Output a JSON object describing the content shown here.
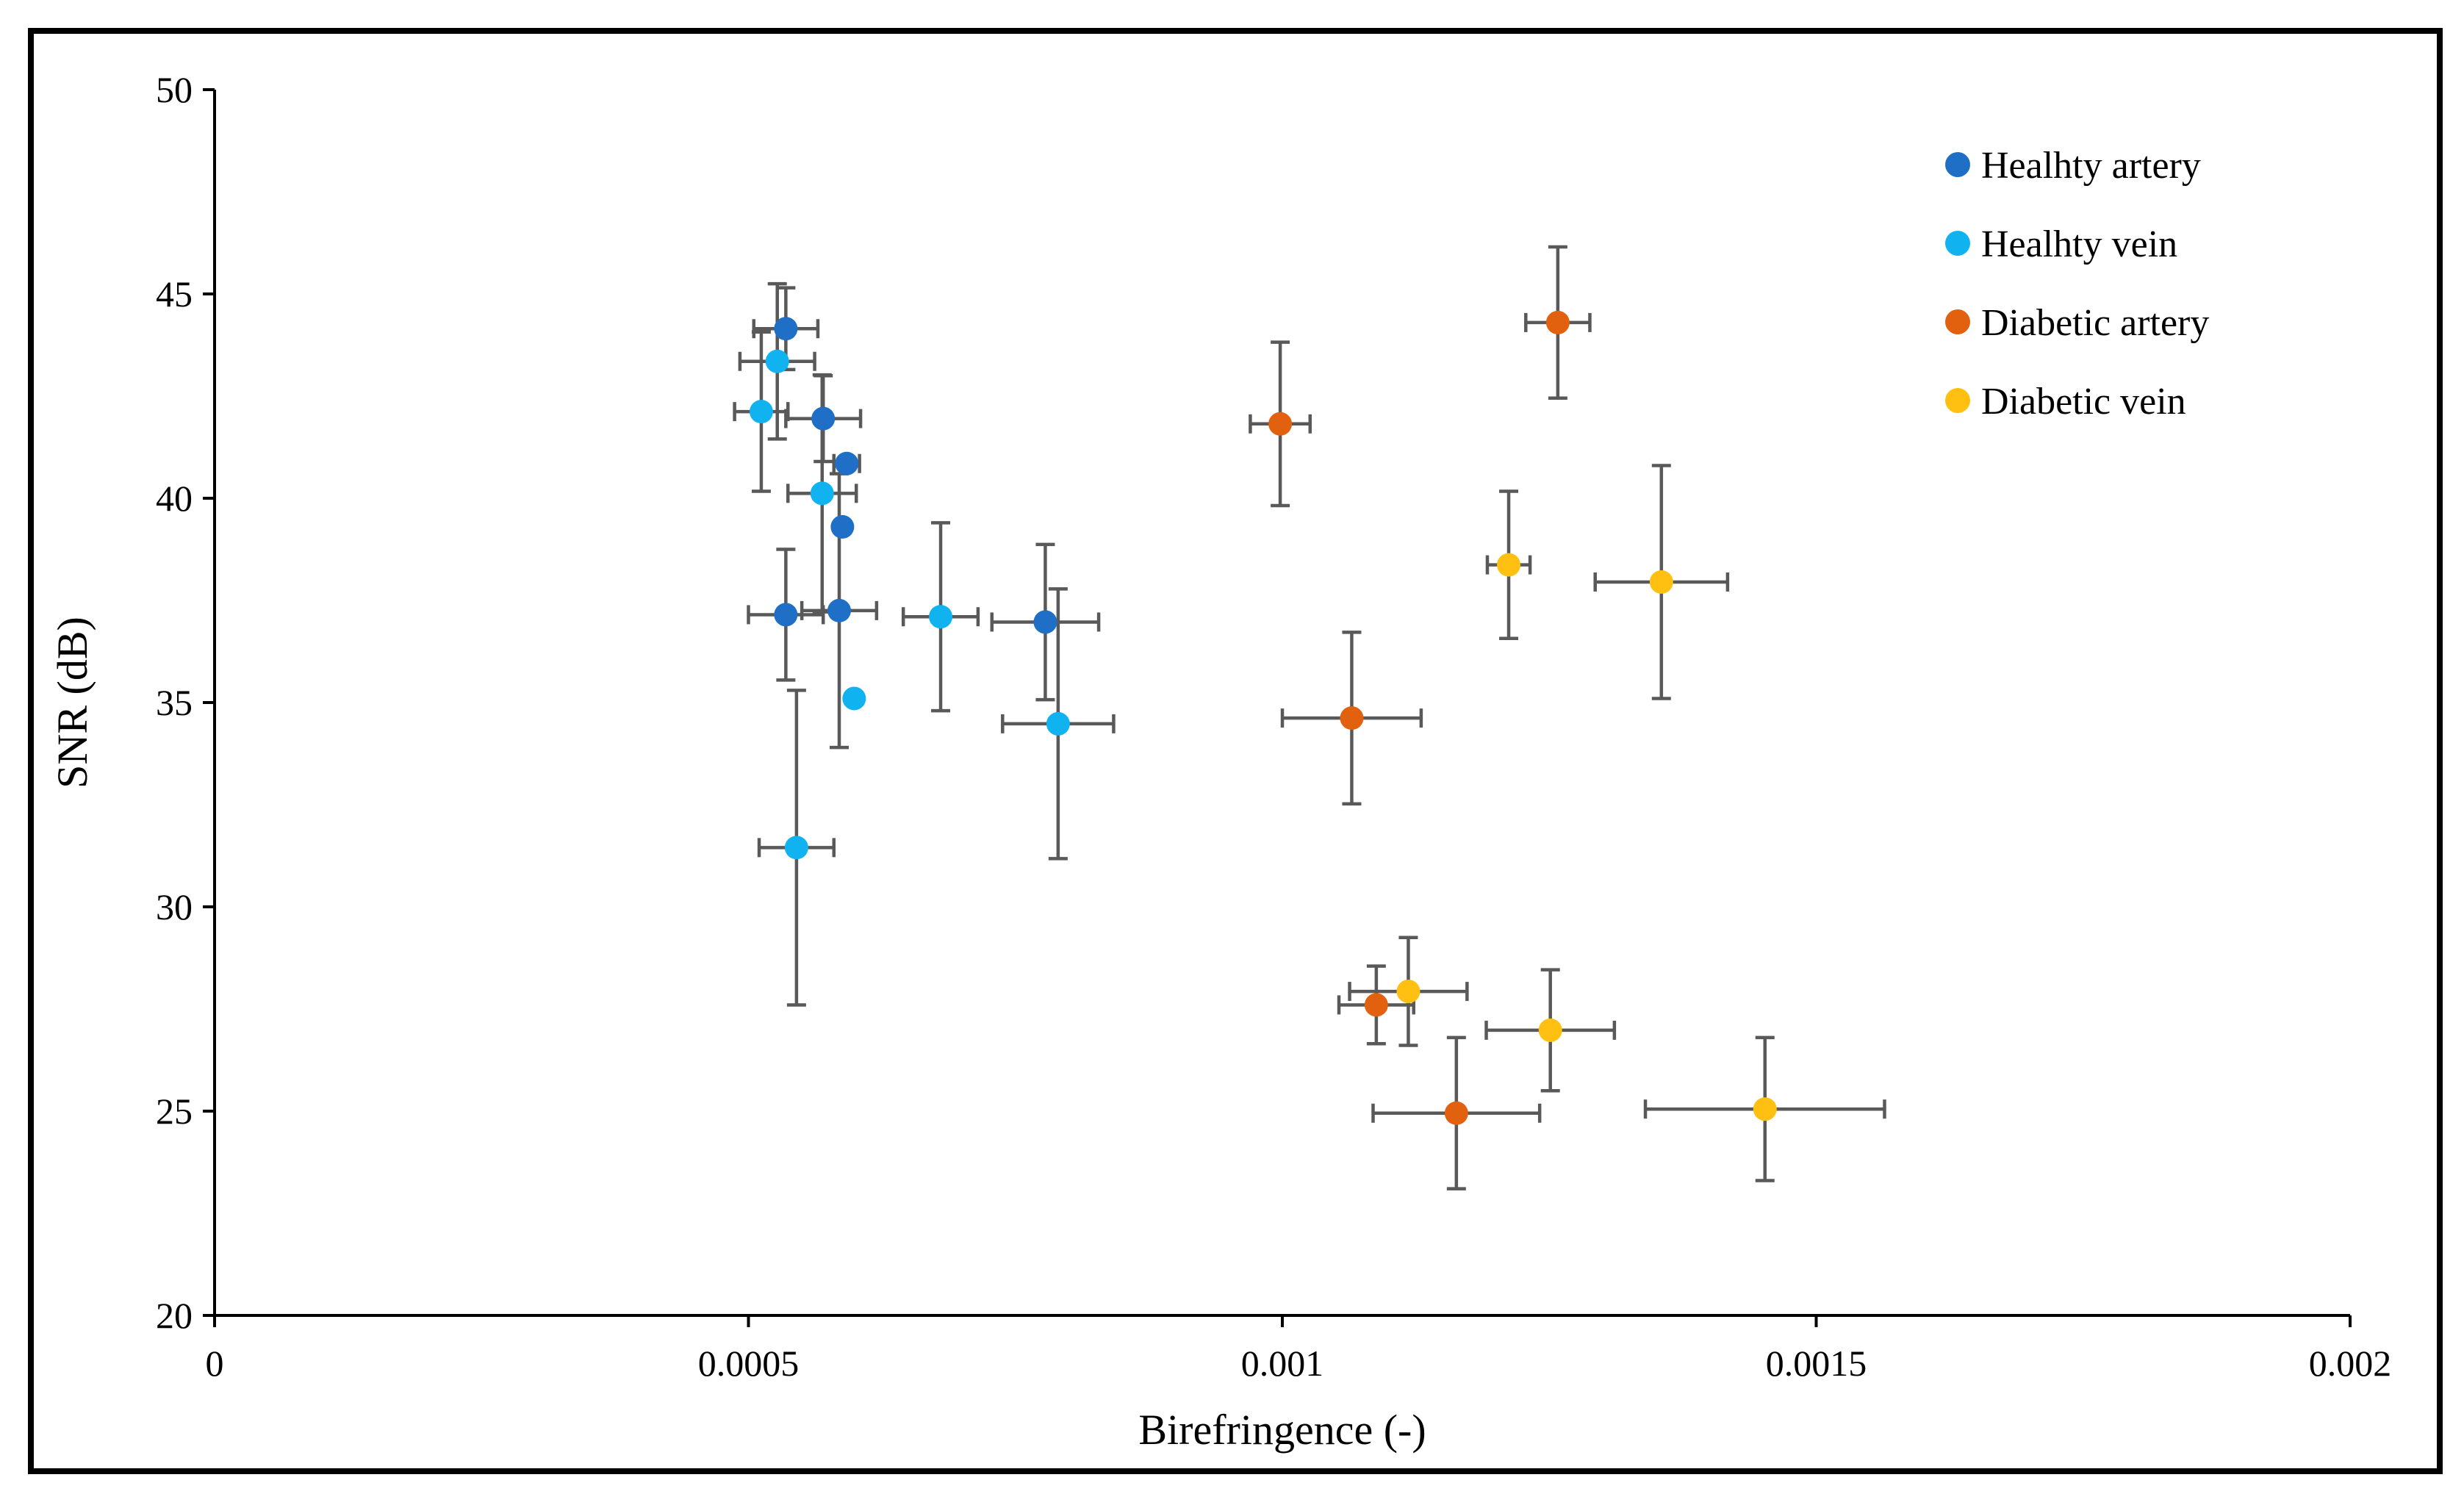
{
  "chart_data": {
    "type": "scatter",
    "title": "",
    "xlabel": "Birefringence (-)",
    "ylabel": "SNR (dB)",
    "xlim": [
      0,
      0.002
    ],
    "ylim": [
      20,
      50
    ],
    "x_ticks": [
      0,
      0.0005,
      0.001,
      0.0015,
      0.002
    ],
    "x_tick_labels": [
      "0",
      "0.0005",
      "0.001",
      "0.0015",
      "0.002"
    ],
    "y_ticks": [
      20,
      25,
      30,
      35,
      40,
      45,
      50
    ],
    "y_tick_labels": [
      "20",
      "25",
      "30",
      "35",
      "40",
      "45",
      "50"
    ],
    "grid": false,
    "legend_position": "top-right",
    "series": [
      {
        "name": "Healhty artery",
        "color": "#1f6fc6",
        "points": [
          {
            "x": 0.000535,
            "y": 44.15,
            "xerr": 3e-05,
            "yerr": 1.0
          },
          {
            "x": 0.00057,
            "y": 41.95,
            "xerr": 3.5e-05,
            "yerr": 1.05
          },
          {
            "x": 0.000592,
            "y": 40.85,
            "xerr": 1.2e-05,
            "yerr": 0
          },
          {
            "x": 0.000588,
            "y": 39.3,
            "xerr": 0,
            "yerr": 0
          },
          {
            "x": 0.000535,
            "y": 37.15,
            "xerr": 3.5e-05,
            "yerr": 1.6
          },
          {
            "x": 0.000585,
            "y": 37.25,
            "xerr": 3.5e-05,
            "yerr": 3.35
          },
          {
            "x": 0.000778,
            "y": 36.97,
            "xerr": 5e-05,
            "yerr": 1.9
          }
        ]
      },
      {
        "name": "Healhty vein",
        "color": "#10b3f0",
        "points": [
          {
            "x": 0.000527,
            "y": 43.35,
            "xerr": 3.5e-05,
            "yerr": 1.9
          },
          {
            "x": 0.000512,
            "y": 42.12,
            "xerr": 2.5e-05,
            "yerr": 1.95
          },
          {
            "x": 0.000569,
            "y": 40.12,
            "xerr": 3.2e-05,
            "yerr": 2.9
          },
          {
            "x": 0.00068,
            "y": 37.1,
            "xerr": 3.5e-05,
            "yerr": 2.3
          },
          {
            "x": 0.000599,
            "y": 35.1,
            "xerr": 0,
            "yerr": 0
          },
          {
            "x": 0.00079,
            "y": 34.48,
            "xerr": 5.2e-05,
            "yerr": 3.3
          },
          {
            "x": 0.000545,
            "y": 31.45,
            "xerr": 3.5e-05,
            "yerr": 3.85
          }
        ]
      },
      {
        "name": "Diabetic artery",
        "color": "#e2610f",
        "points": [
          {
            "x": 0.001258,
            "y": 44.3,
            "xerr": 3e-05,
            "yerr": 1.85
          },
          {
            "x": 0.000998,
            "y": 41.82,
            "xerr": 2.8e-05,
            "yerr": 2.0
          },
          {
            "x": 0.001065,
            "y": 34.62,
            "xerr": 6.5e-05,
            "yerr": 2.1
          },
          {
            "x": 0.001088,
            "y": 27.6,
            "xerr": 3.5e-05,
            "yerr": 0.95
          },
          {
            "x": 0.001163,
            "y": 24.95,
            "xerr": 7.8e-05,
            "yerr": 1.85
          }
        ]
      },
      {
        "name": "Diabetic vein",
        "color": "#ffc012",
        "points": [
          {
            "x": 0.001212,
            "y": 38.37,
            "xerr": 2e-05,
            "yerr": 1.8
          },
          {
            "x": 0.001355,
            "y": 37.95,
            "xerr": 6.2e-05,
            "yerr": 2.85
          },
          {
            "x": 0.001118,
            "y": 27.93,
            "xerr": 5.5e-05,
            "yerr": 1.32
          },
          {
            "x": 0.001251,
            "y": 26.98,
            "xerr": 6e-05,
            "yerr": 1.48
          },
          {
            "x": 0.001452,
            "y": 25.05,
            "xerr": 0.000112,
            "yerr": 1.75
          }
        ]
      }
    ]
  }
}
